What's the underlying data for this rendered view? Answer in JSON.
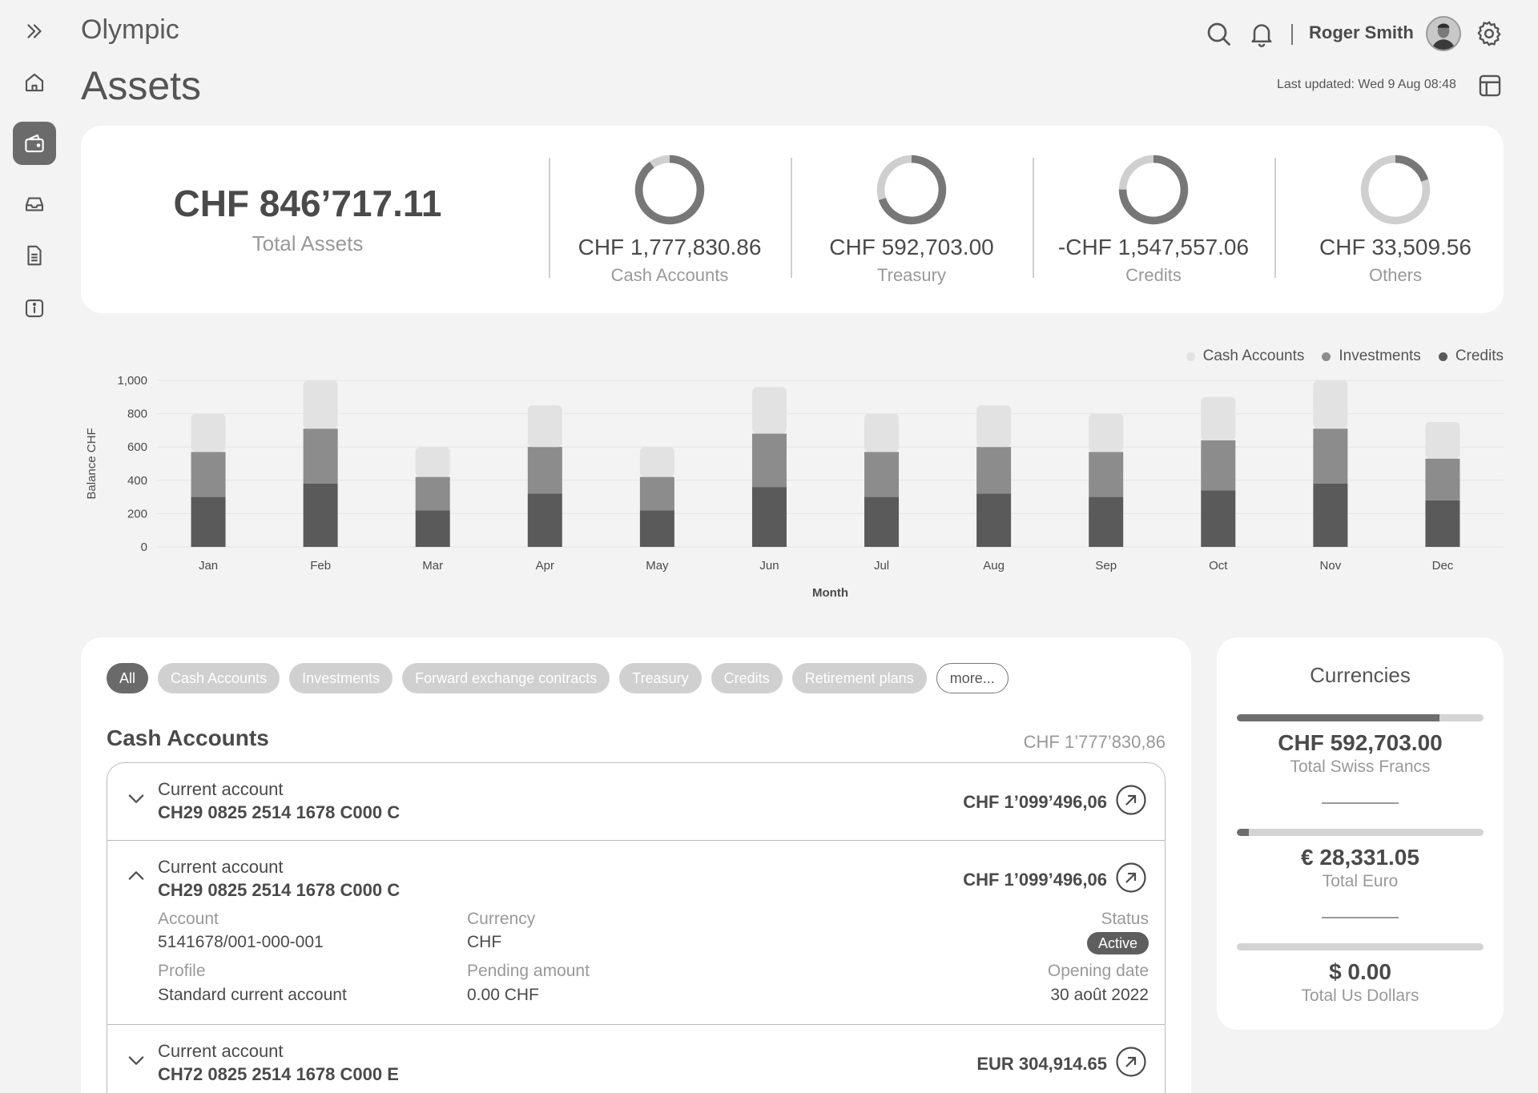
{
  "header": {
    "app_name": "Olympic",
    "page_title": "Assets",
    "user_name": "Roger Smith",
    "last_updated": "Last updated: Wed 9 Aug 08:48"
  },
  "sidebar": {
    "items": [
      {
        "icon": "expand-icon"
      },
      {
        "icon": "home-icon"
      },
      {
        "icon": "wallet-icon",
        "active": true
      },
      {
        "icon": "inbox-icon"
      },
      {
        "icon": "document-icon"
      },
      {
        "icon": "info-icon"
      }
    ]
  },
  "summary": {
    "total_value": "CHF 846’717.11",
    "total_label": "Total Assets",
    "stats": [
      {
        "value": "CHF 1,777,830.86",
        "label": "Cash Accounts"
      },
      {
        "value": "CHF 592,703.00",
        "label": "Treasury"
      },
      {
        "value": "-CHF 1,547,557.06",
        "label": "Credits"
      },
      {
        "value": "CHF 33,509.56",
        "label": "Others"
      }
    ]
  },
  "chart_data": {
    "type": "bar",
    "stacked": true,
    "categories": [
      "Jan",
      "Feb",
      "Mar",
      "Apr",
      "May",
      "Jun",
      "Jul",
      "Aug",
      "Sep",
      "Oct",
      "Nov",
      "Dec"
    ],
    "series": [
      {
        "name": "Credits",
        "color": "#5a5a5a",
        "values": [
          300,
          380,
          220,
          320,
          220,
          360,
          300,
          320,
          300,
          340,
          380,
          280
        ]
      },
      {
        "name": "Investments",
        "color": "#8c8c8c",
        "values": [
          270,
          330,
          200,
          280,
          200,
          320,
          270,
          280,
          270,
          300,
          330,
          250
        ]
      },
      {
        "name": "Cash Accounts",
        "color": "#e2e2e2",
        "values": [
          230,
          290,
          180,
          250,
          180,
          280,
          230,
          250,
          230,
          260,
          290,
          220
        ]
      }
    ],
    "legend": [
      "Cash Accounts",
      "Investments",
      "Credits"
    ],
    "legend_position": "top-right",
    "xlabel": "Month",
    "ylabel": "Balance CHF",
    "ylim": [
      0,
      1000
    ],
    "yticks": [
      "0",
      "200",
      "400",
      "600",
      "800",
      "1,000"
    ],
    "grid": true
  },
  "accounts": {
    "filters": [
      "All",
      "Cash Accounts",
      "Investments",
      "Forward exchange contracts",
      "Treasury",
      "Credits",
      "Retirement plans",
      "more..."
    ],
    "section_title": "Cash Accounts",
    "section_total": "CHF 1’777’830,86",
    "rows": [
      {
        "name": "Current account",
        "iban": "CH29 0825 2514 1678 C000 C",
        "amount": "CHF 1’099’496,06"
      },
      {
        "name": "Current account",
        "iban": "CH29 0825 2514 1678 C000 C",
        "amount": "CHF 1’099’496,06",
        "details": {
          "account_label": "Account",
          "account_value": "5141678/001-000-001",
          "currency_label": "Currency",
          "currency_value": "CHF",
          "status_label": "Status",
          "status_value": "Active",
          "profile_label": "Profile",
          "profile_value": "Standard current account",
          "pending_label": "Pending amount",
          "pending_value": "0.00 CHF",
          "opening_label": "Opening date",
          "opening_value": "30 août 2022"
        }
      },
      {
        "name": "Current account",
        "iban": "CH72 0825 2514 1678 C000 E",
        "amount": "EUR 304,914.65"
      }
    ]
  },
  "currencies": {
    "title": "Currencies",
    "items": [
      {
        "value": "CHF 592,703.00",
        "label": "Total Swiss Francs",
        "share": 0.82
      },
      {
        "value": "€ 28,331.05",
        "label": "Total Euro",
        "share": 0.05
      },
      {
        "value": "$ 0.00",
        "label": "Total Us Dollars",
        "share": 0
      }
    ]
  },
  "donuts": [
    {
      "share": 0.9
    },
    {
      "share": 0.7
    },
    {
      "share": 0.75
    },
    {
      "share": 0.2
    }
  ]
}
